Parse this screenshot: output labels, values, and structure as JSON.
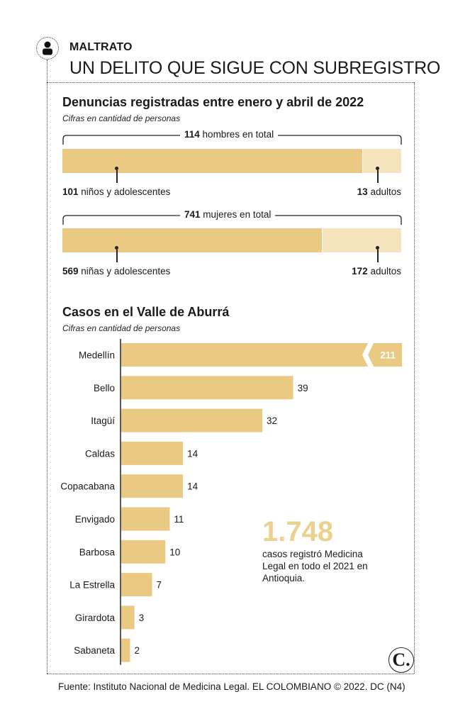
{
  "kicker": "MALTRATO",
  "headline": "UN DELITO QUE SIGUE CON SUBREGISTRO",
  "section1": {
    "title": "Denuncias registradas entre enero y abril de 2022",
    "subtitle": "Cifras en cantidad de personas",
    "men": {
      "total": "114",
      "total_text": "hombres en total",
      "left_value": "101",
      "left_text": "niños y adolescentes",
      "right_value": "13",
      "right_text": "adultos"
    },
    "women": {
      "total": "741",
      "total_text": "mujeres en total",
      "left_value": "569",
      "left_text": "niñas y adolescentes",
      "right_value": "172",
      "right_text": "adultos"
    }
  },
  "section2": {
    "title": "Casos en el Valle de Aburrá",
    "subtitle": "Cifras en cantidad de personas"
  },
  "highlight": {
    "number": "1.748",
    "text": "casos registró Medicina Legal en todo el 2021 en Antioquia."
  },
  "source": "Fuente: Instituto Nacional de Medicina Legal. EL COLOMBIANO © 2022. DC (N4)",
  "logo_letter": "C.",
  "icons": {
    "person": "person-icon",
    "logo": "el-colombiano-logo"
  },
  "colors": {
    "bar": "#eac982",
    "bar_light": "#f5e4bb",
    "highlight": "#ecd08e"
  },
  "chart_data": [
    {
      "type": "bar",
      "orientation": "horizontal-stacked",
      "title": "Denuncias registradas entre enero y abril de 2022",
      "subtitle": "Cifras en cantidad de personas",
      "categories": [
        "hombres",
        "mujeres"
      ],
      "series": [
        {
          "name": "niños y adolescentes",
          "values": [
            101,
            569
          ]
        },
        {
          "name": "adultos",
          "values": [
            13,
            172
          ]
        }
      ],
      "totals": [
        114,
        741
      ]
    },
    {
      "type": "bar",
      "orientation": "horizontal",
      "title": "Casos en el Valle de Aburrá",
      "subtitle": "Cifras en cantidad de personas",
      "categories": [
        "Medellín",
        "Bello",
        "Itagüí",
        "Caldas",
        "Copacabana",
        "Envigado",
        "Barbosa",
        "La Estrella",
        "Girardota",
        "Sabaneta"
      ],
      "values": [
        211,
        39,
        32,
        14,
        14,
        11,
        10,
        7,
        3,
        2
      ],
      "axis_break": "Medellín"
    }
  ]
}
